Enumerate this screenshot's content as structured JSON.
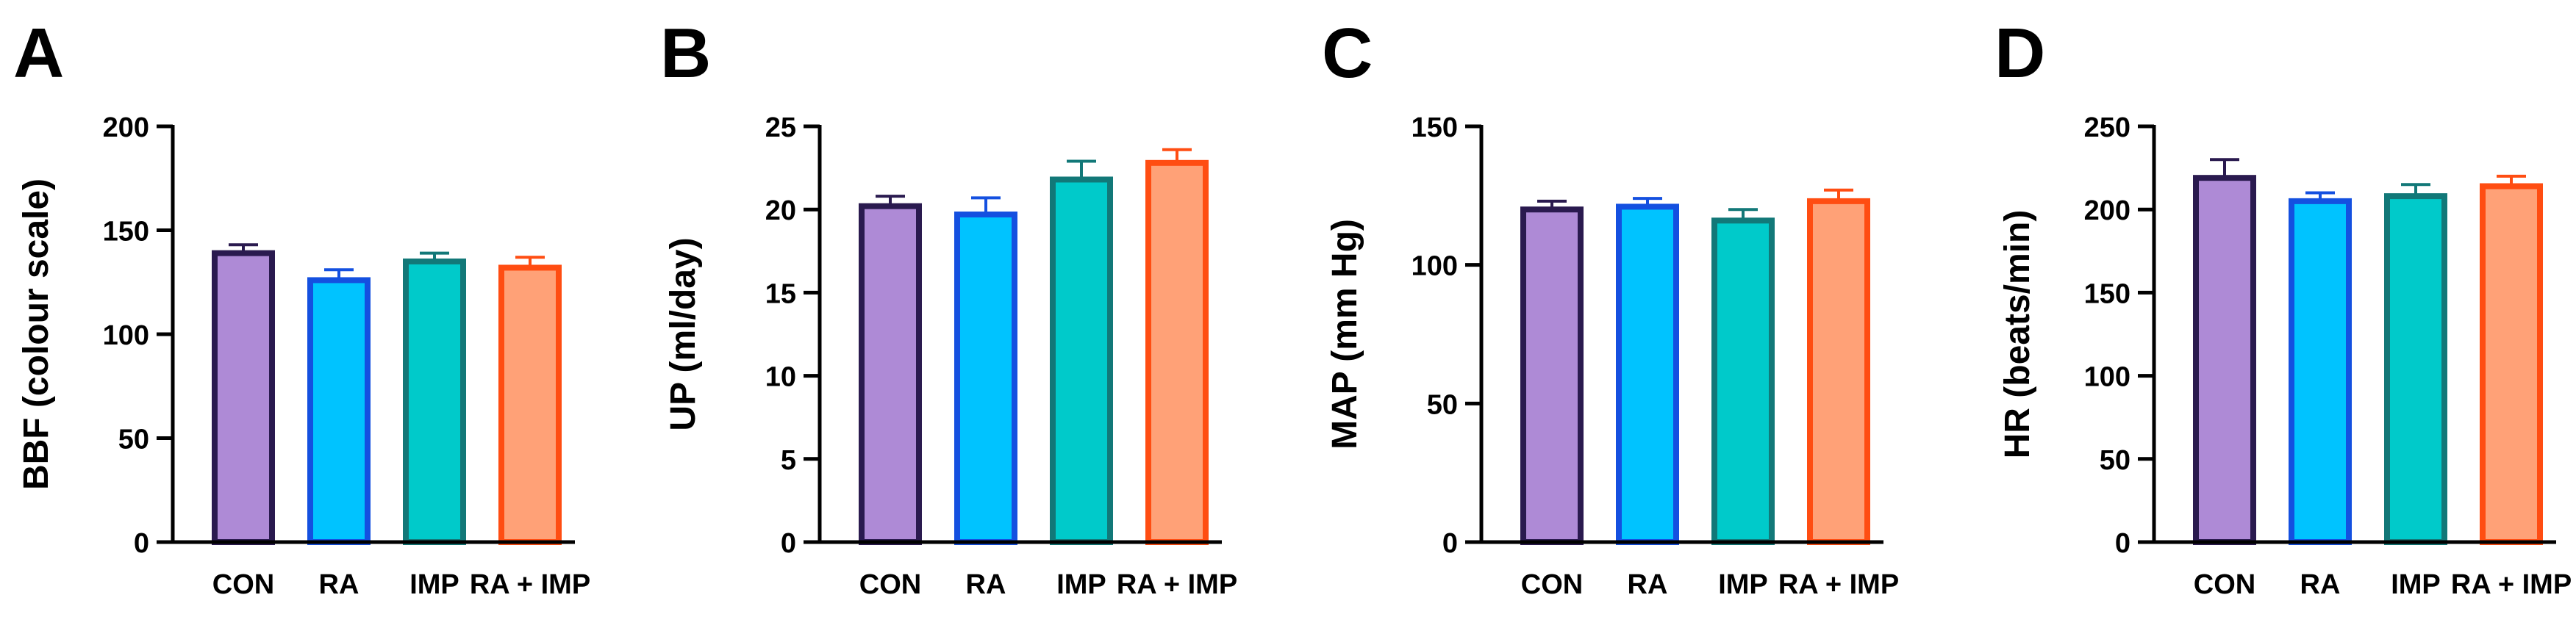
{
  "colors": {
    "fills": [
      "#AE8AD6",
      "#00C3FF",
      "#00CACA",
      "#FFA177"
    ],
    "strokes": [
      "#2A1A4F",
      "#1450E0",
      "#127878",
      "#FF4D12"
    ]
  },
  "chart_data": [
    {
      "type": "bar",
      "panel": "A",
      "ylabel": "BBF (colour scale)",
      "categories": [
        "CON",
        "RA",
        "IMP",
        "RA + IMP"
      ],
      "values": [
        139,
        126,
        135,
        132
      ],
      "errors": [
        4,
        5,
        4,
        5
      ],
      "ylim": [
        0,
        200
      ],
      "yticks": [
        0,
        50,
        100,
        150,
        200
      ]
    },
    {
      "type": "bar",
      "panel": "B",
      "ylabel": "UP (ml/day)",
      "categories": [
        "CON",
        "RA",
        "IMP",
        "RA + IMP"
      ],
      "values": [
        20.2,
        19.7,
        21.8,
        22.8
      ],
      "errors": [
        0.6,
        1.0,
        1.1,
        0.8
      ],
      "ylim": [
        0,
        25
      ],
      "yticks": [
        0,
        5,
        10,
        15,
        20,
        25
      ]
    },
    {
      "type": "bar",
      "panel": "C",
      "ylabel": "MAP (mm Hg)",
      "categories": [
        "CON",
        "RA",
        "IMP",
        "RA + IMP"
      ],
      "values": [
        120,
        121,
        116,
        123
      ],
      "errors": [
        3,
        3,
        4,
        4
      ],
      "ylim": [
        0,
        150
      ],
      "yticks": [
        0,
        50,
        100,
        150
      ]
    },
    {
      "type": "bar",
      "panel": "D",
      "ylabel": "HR (beats/min)",
      "categories": [
        "CON",
        "RA",
        "IMP",
        "RA + IMP"
      ],
      "values": [
        219,
        205,
        208,
        214
      ],
      "errors": [
        11,
        5,
        7,
        6
      ],
      "ylim": [
        0,
        250
      ],
      "yticks": [
        0,
        50,
        100,
        150,
        200,
        250
      ]
    }
  ]
}
